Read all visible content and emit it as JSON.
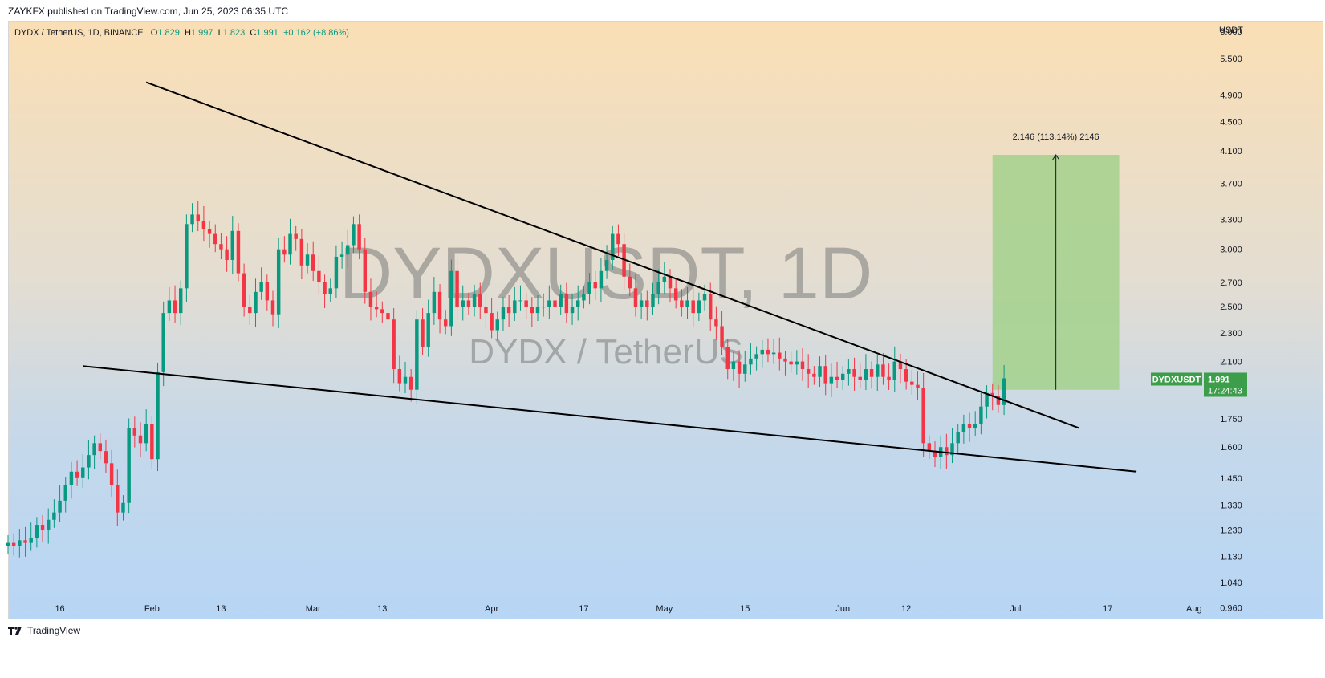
{
  "header": {
    "published": "ZAYKFX published on TradingView.com, Jun 25, 2023 06:35 UTC"
  },
  "legend": {
    "symbol": "DYDX / TetherUS, 1D, BINANCE",
    "o_label": "O",
    "o": "1.829",
    "h_label": "H",
    "h": "1.997",
    "l_label": "L",
    "l": "1.823",
    "c_label": "C",
    "c": "1.991",
    "change": "+0.162 (+8.86%)"
  },
  "watermark": {
    "main": "DYDXUSDT, 1D",
    "sub": "DYDX / TetherUS"
  },
  "footer": {
    "brand": "TradingView",
    "logo": "tradingview-logo"
  },
  "colors": {
    "up": "#089981",
    "down": "#f23645",
    "target_box": "#a3d18c",
    "price_tag": "#3c9d4a"
  },
  "chart_data": {
    "type": "candlestick",
    "ylabel": "USDT",
    "y_scale": "log",
    "ylim": [
      0.93,
      6.2
    ],
    "y_ticks": [
      0.96,
      1.04,
      1.13,
      1.23,
      1.33,
      1.45,
      1.6,
      1.75,
      1.95,
      2.1,
      2.3,
      2.5,
      2.7,
      3.0,
      3.3,
      3.7,
      4.1,
      4.5,
      4.9,
      5.5,
      6.0
    ],
    "y_tick_labels": [
      "0.960",
      "1.040",
      "1.130",
      "1.230",
      "1.330",
      "1.450",
      "1.600",
      "1.750",
      "",
      "2.100",
      "2.300",
      "2.500",
      "2.700",
      "3.000",
      "3.300",
      "3.700",
      "4.100",
      "4.500",
      "4.900",
      "5.500",
      "6.000"
    ],
    "x_start": "2023-01-07",
    "x_end": "2023-08-02",
    "x_ticks": [
      {
        "date": "2023-01-16",
        "label": "16"
      },
      {
        "date": "2023-02-01",
        "label": "Feb"
      },
      {
        "date": "2023-02-13",
        "label": "13"
      },
      {
        "date": "2023-03-01",
        "label": "Mar"
      },
      {
        "date": "2023-03-13",
        "label": "13"
      },
      {
        "date": "2023-04-01",
        "label": "Apr"
      },
      {
        "date": "2023-04-17",
        "label": "17"
      },
      {
        "date": "2023-05-01",
        "label": "May"
      },
      {
        "date": "2023-05-15",
        "label": "15"
      },
      {
        "date": "2023-06-01",
        "label": "Jun"
      },
      {
        "date": "2023-06-12",
        "label": "12"
      },
      {
        "date": "2023-07-01",
        "label": "Jul"
      },
      {
        "date": "2023-07-17",
        "label": "17"
      },
      {
        "date": "2023-08-01",
        "label": "Aug"
      }
    ],
    "first_date": "2023-01-07",
    "closes": [
      1.18,
      1.17,
      1.19,
      1.18,
      1.2,
      1.25,
      1.23,
      1.27,
      1.3,
      1.35,
      1.42,
      1.48,
      1.45,
      1.5,
      1.56,
      1.62,
      1.58,
      1.52,
      1.42,
      1.3,
      1.34,
      1.7,
      1.66,
      1.62,
      1.72,
      1.54,
      2.03,
      2.45,
      2.55,
      2.45,
      2.65,
      3.25,
      3.35,
      3.28,
      3.2,
      3.15,
      3.05,
      3.0,
      2.9,
      3.18,
      2.78,
      2.5,
      2.45,
      2.62,
      2.7,
      2.55,
      2.44,
      3.0,
      2.95,
      3.15,
      3.1,
      2.85,
      2.95,
      2.8,
      2.7,
      2.6,
      2.65,
      2.93,
      2.95,
      3.04,
      3.25,
      3.0,
      2.62,
      2.5,
      2.48,
      2.45,
      2.4,
      2.05,
      1.96,
      2.0,
      1.92,
      2.4,
      2.2,
      2.45,
      2.62,
      2.4,
      2.35,
      2.8,
      2.5,
      2.55,
      2.5,
      2.6,
      2.5,
      2.45,
      2.32,
      2.4,
      2.5,
      2.45,
      2.55,
      2.55,
      2.5,
      2.45,
      2.5,
      2.5,
      2.55,
      2.5,
      2.6,
      2.45,
      2.5,
      2.55,
      2.6,
      2.7,
      2.65,
      2.8,
      2.9,
      3.15,
      3.05,
      2.75,
      2.65,
      2.5,
      2.55,
      2.5,
      2.6,
      2.7,
      2.75,
      2.65,
      2.55,
      2.5,
      2.55,
      2.45,
      2.55,
      2.6,
      2.4,
      2.35,
      2.2,
      2.05,
      2.1,
      2.02,
      2.08,
      2.12,
      2.15,
      2.18,
      2.15,
      2.16,
      2.12,
      2.1,
      2.08,
      2.1,
      2.05,
      2.02,
      2.0,
      2.07,
      1.96,
      2.0,
      1.98,
      2.02,
      2.05,
      2.0,
      1.98,
      2.05,
      2.0,
      2.08,
      2.0,
      1.98,
      2.1,
      2.05,
      1.97,
      1.95,
      1.93,
      1.62,
      1.58,
      1.55,
      1.6,
      1.56,
      1.62,
      1.68,
      1.72,
      1.7,
      1.72,
      1.82,
      1.9,
      1.88,
      1.829,
      1.991
    ],
    "annotations": {
      "upper_trendline": [
        {
          "x": "2023-01-31",
          "y": 5.1
        },
        {
          "x": "2023-07-12",
          "y": 1.7
        }
      ],
      "lower_trendline": [
        {
          "x": "2023-01-20",
          "y": 2.07
        },
        {
          "x": "2023-07-22",
          "y": 1.48
        }
      ],
      "target_box": {
        "x_from": "2023-06-27",
        "x_to": "2023-07-19",
        "y_from": 1.92,
        "y_to": 4.05
      },
      "target_label": "2.146 (113.14%) 2146",
      "last_price_tag": {
        "symbol": "DYDXUSDT",
        "price": "1.991",
        "countdown": "17:24:43"
      }
    }
  }
}
